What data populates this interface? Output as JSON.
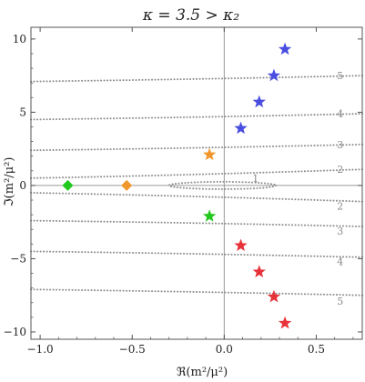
{
  "chart_data": {
    "type": "scatter",
    "title": "κ = 3.5 > κ₂",
    "xlabel": "ℜ(m²/μ²)",
    "ylabel": "ℑ(m²/μ²)",
    "xlim": [
      -1.05,
      0.75
    ],
    "ylim": [
      -10.5,
      10.8
    ],
    "xticks": [
      -1.0,
      -0.5,
      0.0,
      0.5
    ],
    "xtick_labels": [
      "−1.0",
      "−0.5",
      "0.0",
      "0.5"
    ],
    "yticks": [
      -10,
      -5,
      0,
      5,
      10
    ],
    "ytick_labels": [
      "−10",
      "−5",
      "0",
      "5",
      "10"
    ],
    "grid": false,
    "axes_lines": {
      "x": 0,
      "y": 0
    },
    "contours": [
      {
        "label": "5",
        "type": "curve",
        "y_left": 7.1,
        "y_right": 7.5
      },
      {
        "label": "4",
        "type": "curve",
        "y_left": 4.5,
        "y_right": 4.9
      },
      {
        "label": "3",
        "type": "curve",
        "y_left": 2.4,
        "y_right": 2.8
      },
      {
        "label": "2",
        "type": "curve",
        "y_left": 0.5,
        "y_right": 1.1
      },
      {
        "label": "2",
        "type": "curve",
        "y_left": -0.5,
        "y_right": -1.1
      },
      {
        "label": "3",
        "type": "curve",
        "y_left": -2.4,
        "y_right": -2.8
      },
      {
        "label": "4",
        "type": "curve",
        "y_left": -4.5,
        "y_right": -4.9
      },
      {
        "label": "5",
        "type": "curve",
        "y_left": -7.1,
        "y_right": -7.5
      },
      {
        "label": "1",
        "type": "loop",
        "x_min": -0.3,
        "x_max": 0.28,
        "half_height": 0.25
      }
    ],
    "contour_label_positions": [
      {
        "text": "5",
        "x": 0.63,
        "y": 7.5
      },
      {
        "text": "4",
        "x": 0.63,
        "y": 4.9
      },
      {
        "text": "3",
        "x": 0.63,
        "y": 2.8
      },
      {
        "text": "2",
        "x": 0.63,
        "y": 1.1
      },
      {
        "text": "1",
        "x": 0.17,
        "y": 0.5
      },
      {
        "text": "2",
        "x": 0.63,
        "y": -1.4
      },
      {
        "text": "3",
        "x": 0.63,
        "y": -3.1
      },
      {
        "text": "4",
        "x": 0.63,
        "y": -5.2
      },
      {
        "text": "5",
        "x": 0.63,
        "y": -7.9
      }
    ],
    "series": [
      {
        "color": "#4a4ee0",
        "marker": "star",
        "points": [
          [
            0.33,
            9.3
          ],
          [
            0.27,
            7.5
          ],
          [
            0.19,
            5.7
          ],
          [
            0.09,
            3.9
          ]
        ]
      },
      {
        "color": "#e8323a",
        "marker": "star",
        "points": [
          [
            0.09,
            -4.1
          ],
          [
            0.19,
            -5.9
          ],
          [
            0.27,
            -7.6
          ],
          [
            0.33,
            -9.4
          ]
        ]
      },
      {
        "color": "#f0982e",
        "marker": "star",
        "points": [
          [
            -0.08,
            2.1
          ]
        ]
      },
      {
        "color": "#22c81e",
        "marker": "star",
        "points": [
          [
            -0.08,
            -2.1
          ]
        ]
      },
      {
        "color": "#f0982e",
        "marker": "diamond",
        "points": [
          [
            -0.53,
            0.0
          ]
        ]
      },
      {
        "color": "#22c81e",
        "marker": "diamond",
        "points": [
          [
            -0.85,
            0.0
          ]
        ]
      }
    ]
  }
}
